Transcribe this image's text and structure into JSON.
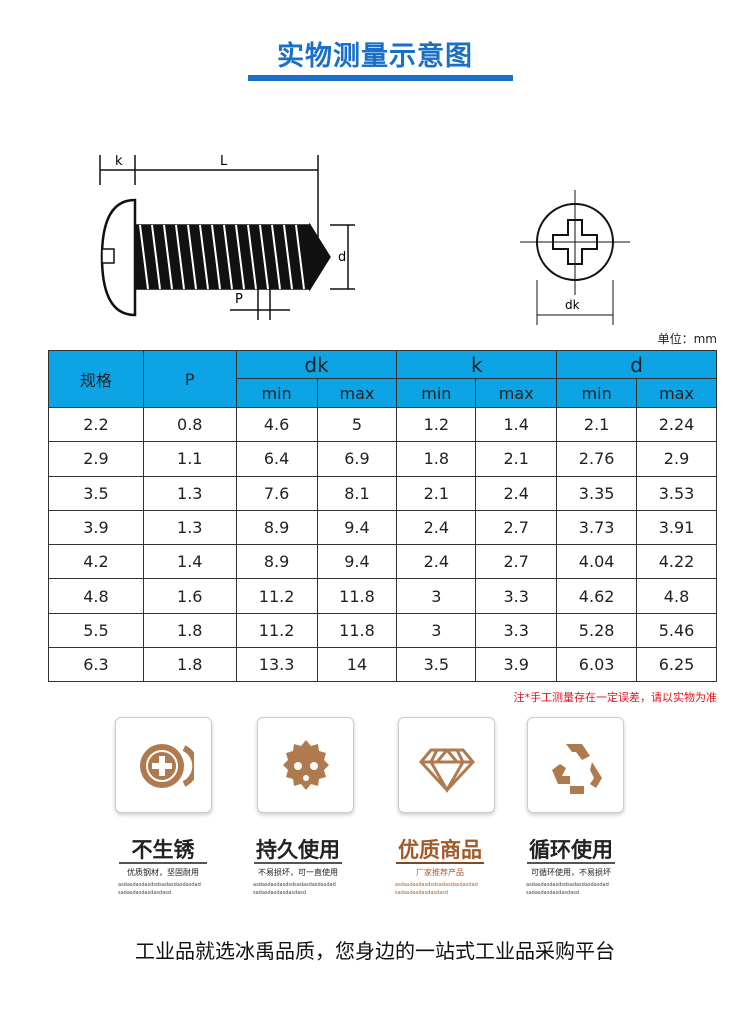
{
  "title": "实物测量示意图",
  "diagram": {
    "k": "k",
    "L": "L",
    "d": "d",
    "P": "P",
    "dk": "dk"
  },
  "unit": "单位：mm",
  "table": {
    "headers": {
      "spec": "规格",
      "p": "P",
      "dk": "dk",
      "k": "k",
      "d": "d",
      "min": "min",
      "max": "max"
    },
    "rows": [
      [
        "2.2",
        "0.8",
        "4.6",
        "5",
        "1.2",
        "1.4",
        "2.1",
        "2.24"
      ],
      [
        "2.9",
        "1.1",
        "6.4",
        "6.9",
        "1.8",
        "2.1",
        "2.76",
        "2.9"
      ],
      [
        "3.5",
        "1.3",
        "7.6",
        "8.1",
        "2.1",
        "2.4",
        "3.35",
        "3.53"
      ],
      [
        "3.9",
        "1.3",
        "8.9",
        "9.4",
        "2.4",
        "2.7",
        "3.73",
        "3.91"
      ],
      [
        "4.2",
        "1.4",
        "8.9",
        "9.4",
        "2.4",
        "2.7",
        "4.04",
        "4.22"
      ],
      [
        "4.8",
        "1.6",
        "11.2",
        "11.8",
        "3",
        "3.3",
        "4.62",
        "4.8"
      ],
      [
        "5.5",
        "1.8",
        "11.2",
        "11.8",
        "3",
        "3.3",
        "5.28",
        "5.46"
      ],
      [
        "6.3",
        "1.8",
        "13.3",
        "14",
        "3.5",
        "3.9",
        "6.03",
        "6.25"
      ]
    ]
  },
  "note": "注*手工测量存在一定误差，请以实物为准",
  "features": [
    {
      "title": "不生锈",
      "sub": "优质钢材，坚固耐用",
      "filler": "asdasdasdasdsdsadasdasdasdadsadasdasdasdasdasd",
      "icon": "screw-head-icon"
    },
    {
      "title": "持久使用",
      "sub": "不易损坏，可一直使用",
      "filler": "asdasdasdasdsdsadasdasdasdadsadasdasdasdasdasd",
      "icon": "gear-nut-icon"
    },
    {
      "title": "优质商品",
      "sub": "厂家推荐产品",
      "filler": "asdasdasdasdsdsadasdasdasdadsadasdasdasdasdasd",
      "icon": "diamond-icon"
    },
    {
      "title": "循环使用",
      "sub": "可循环使用，不易损坏",
      "filler": "asdasdasdasdsdsadasdasdasdadsadasdasdasdasdasd",
      "icon": "recycle-icon"
    }
  ],
  "slogan": "工业品就选冰禹品质，您身边的一站式工业品采购平台",
  "colors": {
    "accent": "#1a6fc6",
    "header": "#0da4e6",
    "icon": "#b07a4f",
    "note": "#e0151b"
  }
}
